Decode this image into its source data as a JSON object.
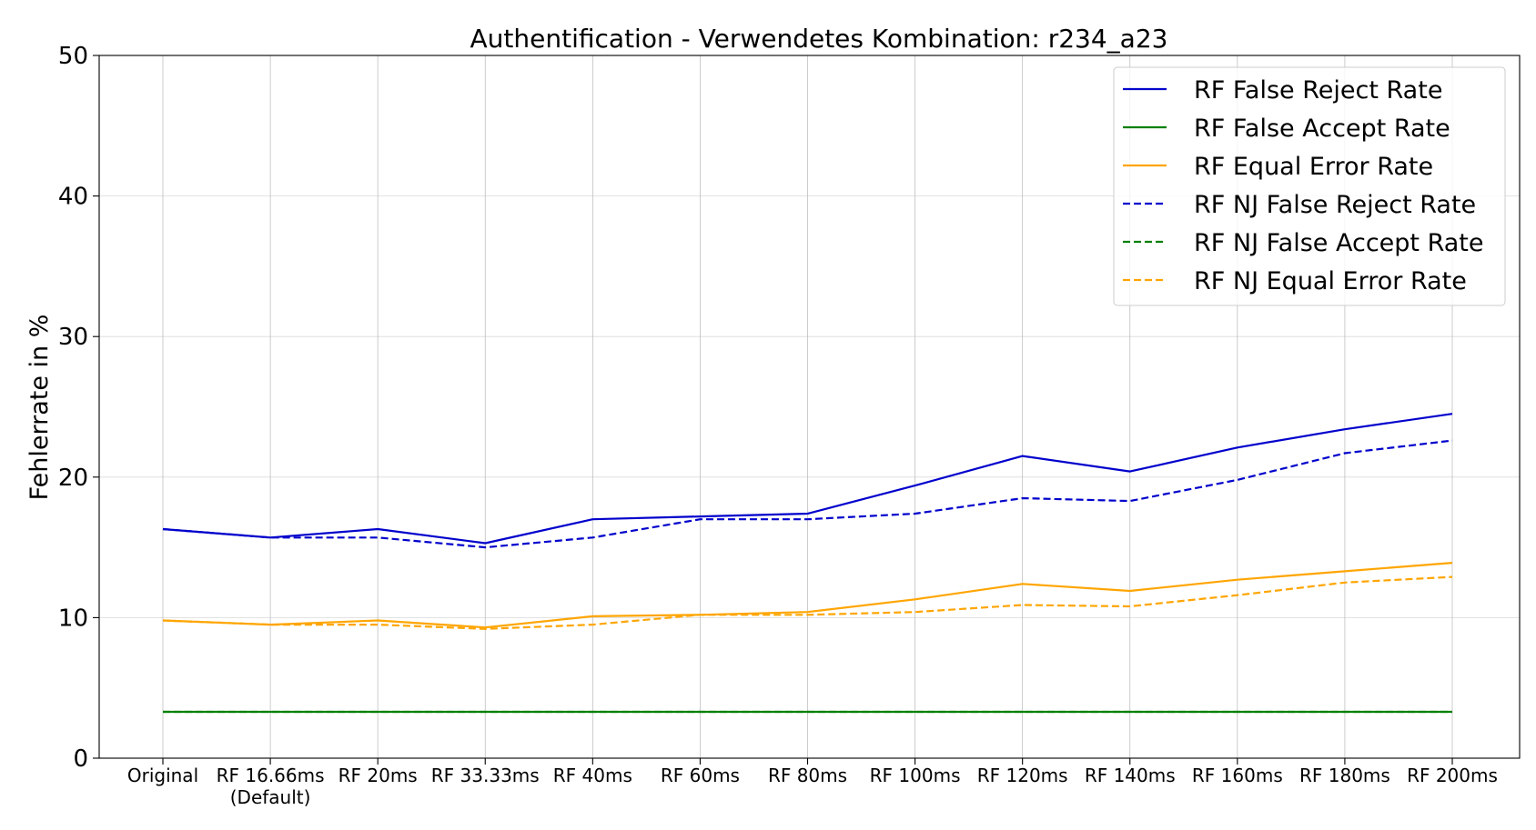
{
  "chart_data": {
    "type": "line",
    "title": "Authentification - Verwendetes Kombination: r234_a23",
    "xlabel": "",
    "ylabel": "Fehlerrate in %",
    "ylim": [
      0,
      50
    ],
    "yticks": [
      "0",
      "10",
      "20",
      "30",
      "40",
      "50"
    ],
    "grid": true,
    "legend_position": "top-right",
    "categories": [
      "Original",
      "RF 16.66ms",
      "RF 20ms",
      "RF 33.33ms",
      "RF 40ms",
      "RF 60ms",
      "RF 80ms",
      "RF 100ms",
      "RF 120ms",
      "RF 140ms",
      "RF 160ms",
      "RF 180ms",
      "RF 200ms"
    ],
    "category_sublabels": [
      "",
      "(Default)",
      "",
      "",
      "",
      "",
      "",
      "",
      "",
      "",
      "",
      "",
      ""
    ],
    "series": [
      {
        "name": "RF False Reject Rate",
        "color": "#0000cc",
        "dash": "solid",
        "values": [
          16.3,
          15.7,
          16.3,
          15.3,
          17.0,
          17.2,
          17.4,
          19.4,
          21.5,
          20.4,
          22.1,
          23.4,
          24.5
        ]
      },
      {
        "name": "RF False Accept Rate",
        "color": "#008000",
        "dash": "solid",
        "values": [
          3.3,
          3.3,
          3.3,
          3.3,
          3.3,
          3.3,
          3.3,
          3.3,
          3.3,
          3.3,
          3.3,
          3.3,
          3.3
        ]
      },
      {
        "name": "RF Equal Error Rate",
        "color": "#ffa500",
        "dash": "solid",
        "values": [
          9.8,
          9.5,
          9.8,
          9.3,
          10.1,
          10.2,
          10.4,
          11.3,
          12.4,
          11.9,
          12.7,
          13.3,
          13.9
        ]
      },
      {
        "name": "RF NJ False Reject Rate",
        "color": "#0000cc",
        "dash": "dashed",
        "values": [
          16.3,
          15.7,
          15.7,
          15.0,
          15.7,
          17.0,
          17.0,
          17.4,
          18.5,
          18.3,
          19.8,
          21.7,
          22.6
        ]
      },
      {
        "name": "RF NJ False Accept Rate",
        "color": "#008000",
        "dash": "dashed",
        "values": [
          3.3,
          3.3,
          3.3,
          3.3,
          3.3,
          3.3,
          3.3,
          3.3,
          3.3,
          3.3,
          3.3,
          3.3,
          3.3
        ]
      },
      {
        "name": "RF NJ Equal Error Rate",
        "color": "#ffa500",
        "dash": "dashed",
        "values": [
          9.8,
          9.5,
          9.5,
          9.2,
          9.5,
          10.2,
          10.2,
          10.4,
          10.9,
          10.8,
          11.6,
          12.5,
          12.9
        ]
      }
    ]
  }
}
